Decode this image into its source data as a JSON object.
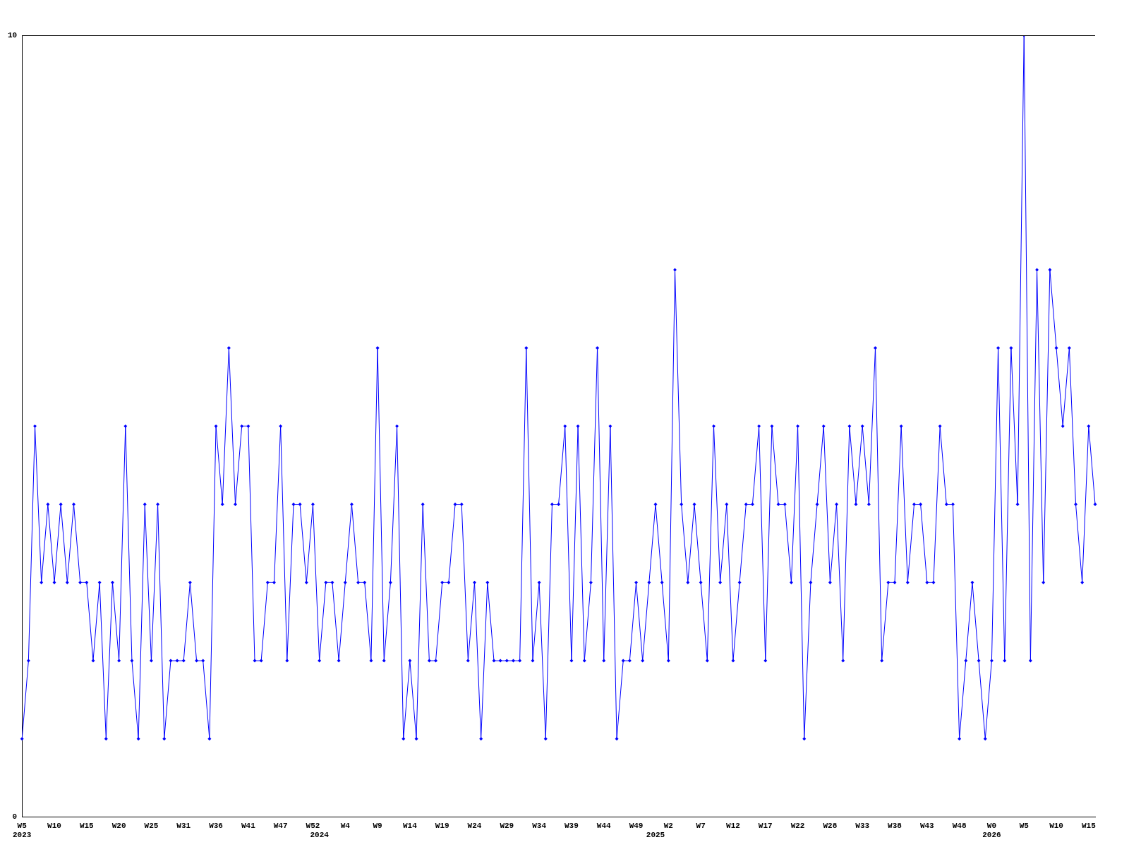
{
  "chart_data": {
    "type": "line",
    "categories": [
      "W5\n2023",
      null,
      null,
      null,
      null,
      "W10",
      null,
      null,
      null,
      null,
      "W15",
      null,
      null,
      null,
      null,
      "W20",
      null,
      null,
      null,
      null,
      "W25",
      null,
      null,
      null,
      null,
      "W31",
      null,
      null,
      null,
      null,
      "W36",
      null,
      null,
      null,
      null,
      "W41",
      null,
      null,
      null,
      null,
      "W47",
      null,
      null,
      null,
      null,
      "W52",
      "\n2024",
      null,
      null,
      null,
      "W4",
      null,
      null,
      null,
      null,
      "W9",
      null,
      null,
      null,
      null,
      "W14",
      null,
      null,
      null,
      null,
      "W19",
      null,
      null,
      null,
      null,
      "W24",
      null,
      null,
      null,
      null,
      "W29",
      null,
      null,
      null,
      null,
      "W34",
      null,
      null,
      null,
      null,
      "W39",
      null,
      null,
      null,
      null,
      "W44",
      null,
      null,
      null,
      null,
      "W49",
      null,
      null,
      "\n2025",
      null,
      "W2",
      null,
      null,
      null,
      null,
      "W7",
      null,
      null,
      null,
      null,
      "W12",
      null,
      null,
      null,
      null,
      "W17",
      null,
      null,
      null,
      null,
      "W22",
      null,
      null,
      null,
      null,
      "W28",
      null,
      null,
      null,
      null,
      "W33",
      null,
      null,
      null,
      null,
      "W38",
      null,
      null,
      null,
      null,
      "W43",
      null,
      null,
      null,
      null,
      "W48",
      null,
      null,
      null,
      null,
      "W0\n2026",
      null,
      null,
      null,
      null,
      "W5",
      null,
      null,
      null,
      null,
      "W10",
      null,
      null,
      null,
      null,
      "W15",
      null
    ],
    "series": [
      {
        "color": "#0000ff",
        "values": [
          1,
          2,
          5,
          3,
          4,
          3,
          4,
          3,
          4,
          3,
          3,
          2,
          3,
          1,
          3,
          2,
          5,
          2,
          1,
          4,
          2,
          4,
          1,
          2,
          2,
          2,
          3,
          2,
          2,
          1,
          5,
          4,
          6,
          4,
          5,
          5,
          2,
          2,
          3,
          3,
          5,
          2,
          4,
          4,
          3,
          4,
          2,
          3,
          3,
          2,
          3,
          4,
          3,
          3,
          2,
          6,
          2,
          3,
          5,
          1,
          2,
          1,
          4,
          2,
          2,
          3,
          3,
          4,
          4,
          2,
          3,
          1,
          3,
          2,
          2,
          2,
          2,
          2,
          6,
          2,
          3,
          1,
          4,
          4,
          5,
          2,
          5,
          2,
          3,
          6,
          2,
          5,
          1,
          2,
          2,
          3,
          2,
          3,
          4,
          3,
          2,
          7,
          4,
          3,
          4,
          3,
          2,
          5,
          3,
          4,
          2,
          3,
          4,
          4,
          5,
          2,
          5,
          4,
          4,
          3,
          5,
          1,
          3,
          4,
          5,
          3,
          4,
          2,
          5,
          4,
          5,
          4,
          6,
          2,
          3,
          3,
          5,
          3,
          4,
          4,
          3,
          3,
          5,
          4,
          4,
          1,
          2,
          3,
          2,
          1,
          2,
          6,
          2,
          6,
          4,
          10,
          2,
          7,
          3,
          7,
          6,
          5,
          6,
          4,
          3,
          5,
          4
        ]
      }
    ],
    "ylim": [
      0,
      10
    ],
    "yticks": [
      0,
      10
    ],
    "grid": false,
    "legend": false,
    "marker": "diamond",
    "line_style": "solid"
  }
}
